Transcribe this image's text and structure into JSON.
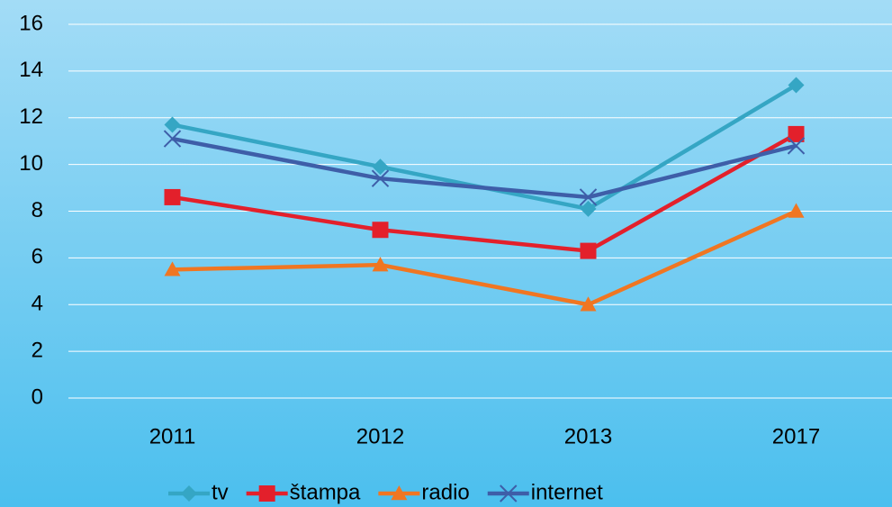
{
  "chart_data": {
    "type": "line",
    "categories": [
      "2011",
      "2012",
      "2013",
      "2017"
    ],
    "series": [
      {
        "name": "tv",
        "color": "#35a6c4",
        "marker": "diamond",
        "values": [
          11.7,
          9.9,
          8.1,
          13.4
        ]
      },
      {
        "name": "štampa",
        "color": "#e3202b",
        "marker": "square",
        "values": [
          8.6,
          7.2,
          6.3,
          11.3
        ]
      },
      {
        "name": "radio",
        "color": "#f07622",
        "marker": "triangle",
        "values": [
          5.5,
          5.7,
          4.0,
          8.0
        ]
      },
      {
        "name": "internet",
        "color": "#3e5ea8",
        "marker": "x",
        "values": [
          11.1,
          9.4,
          8.6,
          10.8
        ]
      }
    ],
    "ylim": [
      0,
      16
    ],
    "yticks": [
      0,
      2,
      4,
      6,
      8,
      10,
      12,
      14,
      16
    ],
    "grid": true,
    "legend": "bottom"
  }
}
